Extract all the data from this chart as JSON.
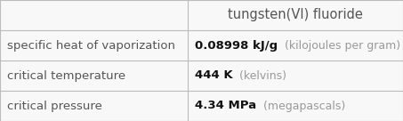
{
  "title": "tungsten(VI) fluoride",
  "rows": [
    {
      "label": "specific heat of vaporization",
      "value_bold": "0.08998 kJ/g",
      "value_light": "  (kilojoules per gram)"
    },
    {
      "label": "critical temperature",
      "value_bold": "444 K",
      "value_light": "  (kelvins)"
    },
    {
      "label": "critical pressure",
      "value_bold": "4.34 MPa",
      "value_light": "  (megapascals)"
    }
  ],
  "col_split": 0.465,
  "bg_color": "#f8f8f8",
  "border_color": "#bbbbbb",
  "header_text_color": "#555555",
  "label_text_color": "#555555",
  "value_bold_color": "#111111",
  "value_light_color": "#999999",
  "title_fontsize": 10.5,
  "label_fontsize": 9.5,
  "value_fontsize": 9.5,
  "value_light_fontsize": 9.0
}
